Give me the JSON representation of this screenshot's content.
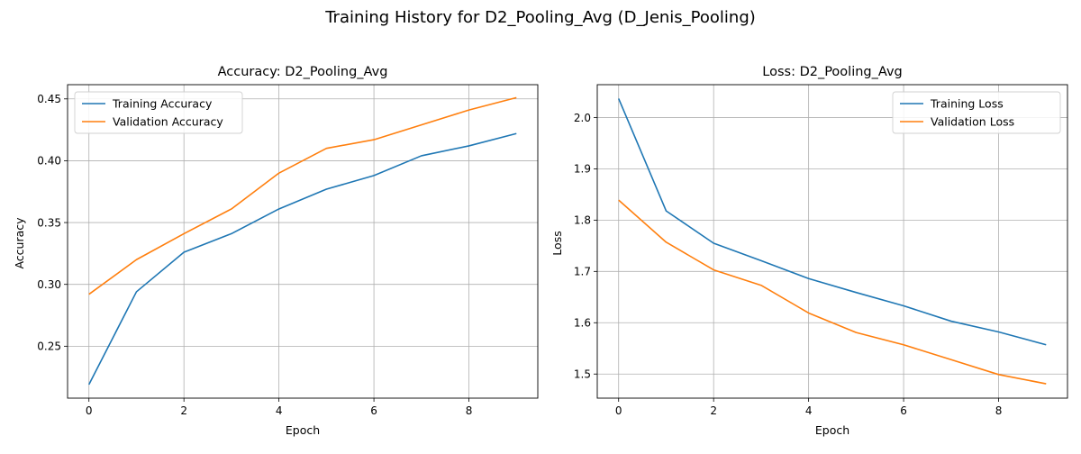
{
  "figure": {
    "suptitle": "Training History for D2_Pooling_Avg (D_Jenis_Pooling)"
  },
  "chart_data": [
    {
      "type": "line",
      "title": "Accuracy: D2_Pooling_Avg",
      "xlabel": "Epoch",
      "ylabel": "Accuracy",
      "x": [
        0,
        1,
        2,
        3,
        4,
        5,
        6,
        7,
        8,
        9
      ],
      "xlim": [
        -0.45,
        9.45
      ],
      "ylim": [
        0.208,
        0.4615
      ],
      "xticks": [
        0,
        2,
        4,
        6,
        8
      ],
      "yticks": [
        0.25,
        0.3,
        0.35,
        0.4,
        0.45
      ],
      "ytick_labels": [
        "0.25",
        "0.30",
        "0.35",
        "0.40",
        "0.45"
      ],
      "grid": true,
      "legend_loc": "upper-left",
      "series": [
        {
          "name": "Training Accuracy",
          "color": "#1f77b4",
          "values": [
            0.219,
            0.294,
            0.326,
            0.341,
            0.361,
            0.377,
            0.388,
            0.404,
            0.412,
            0.422
          ]
        },
        {
          "name": "Validation Accuracy",
          "color": "#ff7f0e",
          "values": [
            0.292,
            0.32,
            0.341,
            0.361,
            0.39,
            0.41,
            0.417,
            0.429,
            0.441,
            0.451
          ]
        }
      ]
    },
    {
      "type": "line",
      "title": "Loss: D2_Pooling_Avg",
      "xlabel": "Epoch",
      "ylabel": "Loss",
      "x": [
        0,
        1,
        2,
        3,
        4,
        5,
        6,
        7,
        8,
        9
      ],
      "xlim": [
        -0.45,
        9.45
      ],
      "ylim": [
        1.453,
        2.064
      ],
      "xticks": [
        0,
        2,
        4,
        6,
        8
      ],
      "yticks": [
        1.5,
        1.6,
        1.7,
        1.8,
        1.9,
        2.0
      ],
      "ytick_labels": [
        "1.5",
        "1.6",
        "1.7",
        "1.8",
        "1.9",
        "2.0"
      ],
      "grid": true,
      "legend_loc": "upper-right",
      "series": [
        {
          "name": "Training Loss",
          "color": "#1f77b4",
          "values": [
            2.037,
            1.818,
            1.755,
            1.721,
            1.686,
            1.659,
            1.633,
            1.603,
            1.582,
            1.557
          ]
        },
        {
          "name": "Validation Loss",
          "color": "#ff7f0e",
          "values": [
            1.839,
            1.757,
            1.703,
            1.673,
            1.619,
            1.581,
            1.557,
            1.528,
            1.499,
            1.481
          ]
        }
      ]
    }
  ]
}
